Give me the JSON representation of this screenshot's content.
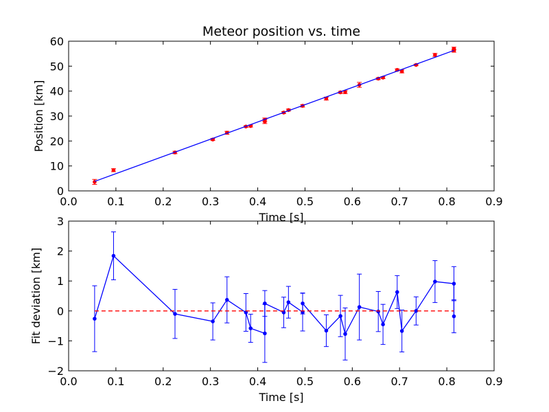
{
  "chart_data": [
    {
      "type": "line",
      "title": "Meteor position vs. time",
      "xlabel": "Time [s]",
      "ylabel": "Position [km]",
      "xlim": [
        0.0,
        0.9
      ],
      "ylim": [
        0,
        60
      ],
      "xticks": [
        "0.0",
        "0.1",
        "0.2",
        "0.3",
        "0.4",
        "0.5",
        "0.6",
        "0.7",
        "0.8",
        "0.9"
      ],
      "yticks": [
        "0",
        "10",
        "20",
        "30",
        "40",
        "50",
        "60"
      ],
      "grid": false,
      "series": [
        {
          "kind": "scatter-errorbar",
          "color": "#ff0000",
          "points": [
            {
              "x": 0.055,
              "y": 3.6,
              "err": 1.0
            },
            {
              "x": 0.095,
              "y": 8.3,
              "err": 0.6
            },
            {
              "x": 0.225,
              "y": 15.4,
              "err": 0.5
            },
            {
              "x": 0.305,
              "y": 20.6,
              "err": 0.4
            },
            {
              "x": 0.335,
              "y": 23.3,
              "err": 0.6
            },
            {
              "x": 0.375,
              "y": 25.8,
              "err": 0.3
            },
            {
              "x": 0.385,
              "y": 26.0,
              "err": 0.4
            },
            {
              "x": 0.415,
              "y": 27.8,
              "err": 0.8
            },
            {
              "x": 0.415,
              "y": 28.5,
              "err": 0.7
            },
            {
              "x": 0.455,
              "y": 31.4,
              "err": 0.4
            },
            {
              "x": 0.465,
              "y": 32.4,
              "err": 0.4
            },
            {
              "x": 0.495,
              "y": 34.1,
              "err": 0.5
            },
            {
              "x": 0.545,
              "y": 37.0,
              "err": 0.6
            },
            {
              "x": 0.575,
              "y": 39.5,
              "err": 0.4
            },
            {
              "x": 0.585,
              "y": 39.6,
              "err": 0.6
            },
            {
              "x": 0.615,
              "y": 42.5,
              "err": 1.0
            },
            {
              "x": 0.655,
              "y": 45.0,
              "err": 0.4
            },
            {
              "x": 0.665,
              "y": 45.4,
              "err": 0.4
            },
            {
              "x": 0.695,
              "y": 48.5,
              "err": 0.4
            },
            {
              "x": 0.705,
              "y": 47.9,
              "err": 0.6
            },
            {
              "x": 0.735,
              "y": 50.5,
              "err": 0.3
            },
            {
              "x": 0.775,
              "y": 54.5,
              "err": 0.6
            },
            {
              "x": 0.815,
              "y": 56.2,
              "err": 0.6
            },
            {
              "x": 0.815,
              "y": 57.0,
              "err": 0.6
            }
          ]
        },
        {
          "kind": "fit-line",
          "color": "#0000ff",
          "x": [
            0.055,
            0.815
          ],
          "y": [
            3.8,
            56.3
          ]
        }
      ]
    },
    {
      "type": "line",
      "title": "",
      "xlabel": "Time [s]",
      "ylabel": "Fit deviation [km]",
      "xlim": [
        0.0,
        0.9
      ],
      "ylim": [
        -2,
        3
      ],
      "xticks": [
        "0.0",
        "0.1",
        "0.2",
        "0.3",
        "0.4",
        "0.5",
        "0.6",
        "0.7",
        "0.8",
        "0.9"
      ],
      "yticks": [
        "−2",
        "−1",
        "0",
        "1",
        "2",
        "3"
      ],
      "grid": false,
      "series": [
        {
          "kind": "line-errorbar",
          "color": "#0000ff",
          "points": [
            {
              "x": 0.055,
              "y": -0.26,
              "err": 1.1
            },
            {
              "x": 0.095,
              "y": 1.84,
              "err": 0.8
            },
            {
              "x": 0.225,
              "y": -0.1,
              "err": 0.82
            },
            {
              "x": 0.305,
              "y": -0.35,
              "err": 0.62
            },
            {
              "x": 0.335,
              "y": 0.37,
              "err": 0.77
            },
            {
              "x": 0.375,
              "y": -0.05,
              "err": 0.63
            },
            {
              "x": 0.385,
              "y": -0.58,
              "err": 0.47
            },
            {
              "x": 0.415,
              "y": -0.75,
              "err": 0.97
            },
            {
              "x": 0.415,
              "y": 0.25,
              "err": 0.43
            },
            {
              "x": 0.455,
              "y": -0.05,
              "err": 0.51
            },
            {
              "x": 0.465,
              "y": 0.29,
              "err": 0.53
            },
            {
              "x": 0.495,
              "y": -0.04,
              "err": 0.63
            },
            {
              "x": 0.495,
              "y": 0.25,
              "err": 0.35
            },
            {
              "x": 0.545,
              "y": -0.66,
              "err": 0.53
            },
            {
              "x": 0.575,
              "y": -0.17,
              "err": 0.69
            },
            {
              "x": 0.585,
              "y": -0.77,
              "err": 0.87
            },
            {
              "x": 0.615,
              "y": 0.13,
              "err": 1.1
            },
            {
              "x": 0.655,
              "y": -0.02,
              "err": 0.67
            },
            {
              "x": 0.665,
              "y": -0.45,
              "err": 0.67
            },
            {
              "x": 0.695,
              "y": 0.63,
              "err": 0.55
            },
            {
              "x": 0.705,
              "y": -0.67,
              "err": 0.7
            },
            {
              "x": 0.735,
              "y": 0.0,
              "err": 0.47
            },
            {
              "x": 0.775,
              "y": 0.98,
              "err": 0.7
            },
            {
              "x": 0.815,
              "y": 0.91,
              "err": 0.57
            },
            {
              "x": 0.815,
              "y": -0.18,
              "err": 0.55
            }
          ]
        },
        {
          "kind": "reference-line",
          "color": "#ff0000",
          "dashed": true,
          "x": [
            0.055,
            0.815
          ],
          "y": [
            0,
            0
          ]
        }
      ]
    }
  ]
}
